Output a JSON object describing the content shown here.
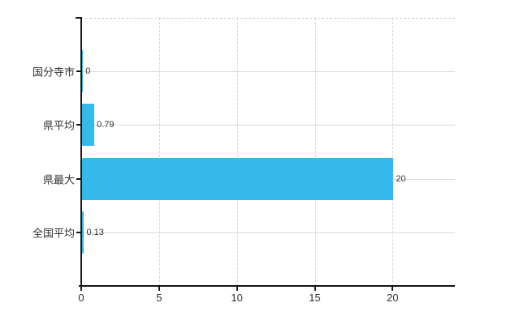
{
  "chart_data": {
    "type": "bar",
    "orientation": "horizontal",
    "title": "",
    "xlabel": "",
    "ylabel": "",
    "categories": [
      "国分寺市",
      "県平均",
      "県最大",
      "全国平均"
    ],
    "values": [
      0,
      0.79,
      20,
      0.13
    ],
    "value_labels": [
      "0",
      "0.79",
      "20",
      "0.13"
    ],
    "x_ticks": [
      "0",
      "5",
      "10",
      "15",
      "20"
    ],
    "x_tick_values": [
      0,
      5,
      10,
      15,
      20
    ],
    "xlim": [
      0,
      24
    ],
    "grid": true,
    "legend": false
  },
  "colors": {
    "bar": "#35b8ea",
    "axis": "#141414",
    "text": "#333333",
    "grid_horizontal": "#dadada",
    "grid_vertical": "#d2d2d2",
    "plot_top_border": "#c9c9c9",
    "background": "#ffffff"
  }
}
